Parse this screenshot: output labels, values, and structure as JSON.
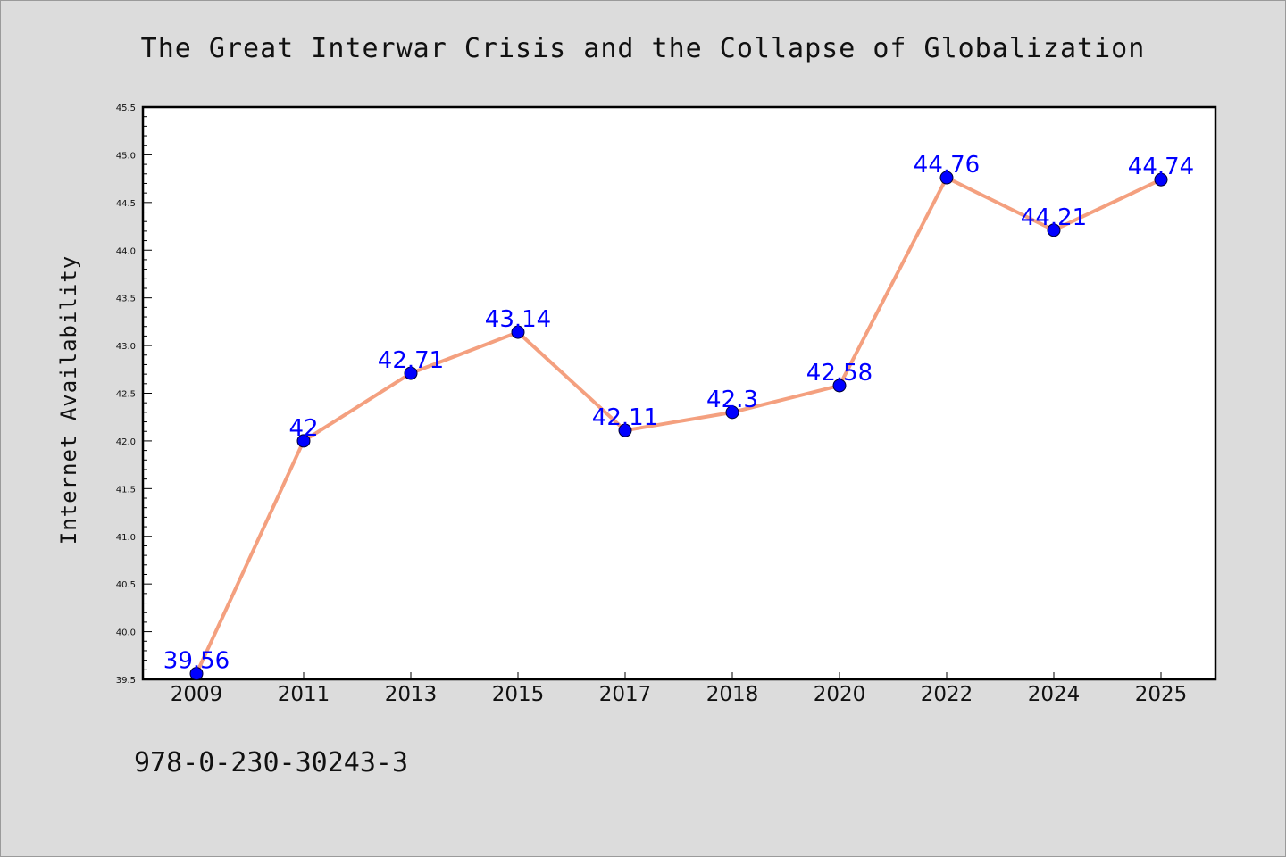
{
  "chart_data": {
    "type": "line",
    "title": "The Great Interwar Crisis and the Collapse of Globalization",
    "xlabel": "",
    "ylabel": "Internet Availability",
    "categories": [
      "2009",
      "2011",
      "2013",
      "2015",
      "2017",
      "2018",
      "2020",
      "2022",
      "2024",
      "2025"
    ],
    "series": [
      {
        "values": [
          39.56,
          42,
          42.71,
          43.14,
          42.11,
          42.3,
          42.58,
          44.76,
          44.21,
          44.74
        ],
        "labels": [
          "39.56",
          "42",
          "42.71",
          "43.14",
          "42.11",
          "42.3",
          "42.58",
          "44.76",
          "44.21",
          "44.74"
        ],
        "line_color": "#f4a07f",
        "marker_color": "#0000ff"
      }
    ],
    "ylim": [
      39.5,
      45.5
    ],
    "yticks": [
      "39.5",
      "40.0",
      "40.5",
      "41.0",
      "41.5",
      "42.0",
      "42.5",
      "43.0",
      "43.5",
      "44.0",
      "44.5",
      "45.0",
      "45.5"
    ],
    "grid": false,
    "legend": "none"
  },
  "footer_text": "978-0-230-30243-3",
  "colors": {
    "background": "#dcdcdc",
    "plot_area": "#ffffff",
    "data_label": "#0000ff"
  }
}
